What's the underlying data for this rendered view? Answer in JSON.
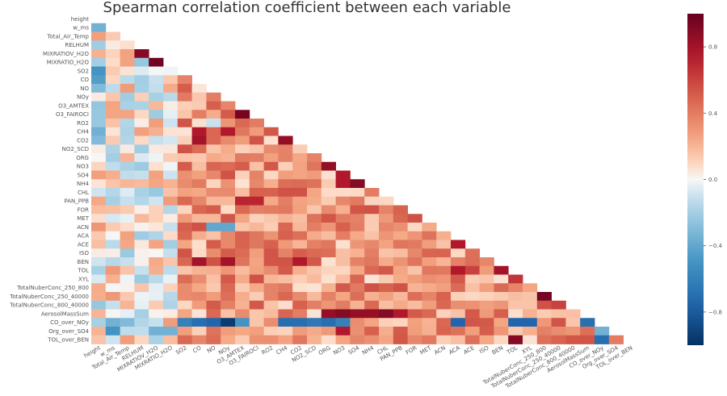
{
  "chart_data": {
    "type": "heatmap",
    "title": "Spearman correlation coefficient between each variable",
    "mask": "lower-triangle",
    "colormap": "RdBu_r",
    "vmin": -1.0,
    "vmax": 1.0,
    "colorbar_ticks": [
      "0.8",
      "0.4",
      "0.0",
      "−0.4",
      "−0.8"
    ],
    "colorbar_tick_values": [
      0.8,
      0.4,
      0.0,
      -0.4,
      -0.8
    ],
    "labels": [
      "height",
      "w_ms",
      "Total_Air_Temp",
      "RELHUM",
      "MIXRATIOV_H2O",
      "MIXRATIO_H2O",
      "SO2",
      "CO",
      "NO",
      "NOy",
      "O3_AMTEX",
      "O3_FAIROCI",
      "RO2",
      "CH4",
      "CO2",
      "NO2_SCD",
      "ORG",
      "NO3",
      "SO4",
      "NH4",
      "CHL",
      "PAN_PPB",
      "FOR",
      "MET",
      "ACN",
      "ACA",
      "ACE",
      "ISO",
      "BEN",
      "TOL",
      "XYL",
      "TotalNuberConc_250_800",
      "TotalNuberConc_250_40000",
      "TotalNuberConc_800_40000",
      "AerosolMassSum",
      "CO_over_NOy",
      "Org_over_SO4",
      "TOL_over_BEN"
    ],
    "seed": 20240607,
    "strong_cells": [
      [
        4,
        3,
        0.9
      ],
      [
        5,
        4,
        0.97
      ],
      [
        11,
        10,
        0.95
      ],
      [
        13,
        7,
        0.75
      ],
      [
        13,
        9,
        0.75
      ],
      [
        14,
        7,
        0.8
      ],
      [
        14,
        13,
        0.85
      ],
      [
        17,
        16,
        0.85
      ],
      [
        18,
        17,
        0.75
      ],
      [
        19,
        17,
        0.75
      ],
      [
        19,
        18,
        0.9
      ],
      [
        21,
        10,
        0.7
      ],
      [
        21,
        11,
        0.7
      ],
      [
        26,
        25,
        0.75
      ],
      [
        28,
        7,
        0.8
      ],
      [
        28,
        9,
        0.8
      ],
      [
        28,
        14,
        0.75
      ],
      [
        29,
        28,
        0.8
      ],
      [
        30,
        29,
        0.65
      ],
      [
        32,
        31,
        0.95
      ],
      [
        34,
        16,
        0.85
      ],
      [
        34,
        17,
        0.9
      ],
      [
        34,
        18,
        0.85
      ],
      [
        34,
        19,
        0.85
      ],
      [
        34,
        20,
        0.9
      ],
      [
        34,
        21,
        0.75
      ],
      [
        35,
        6,
        -0.6
      ],
      [
        35,
        7,
        -0.7
      ],
      [
        35,
        8,
        -0.75
      ],
      [
        35,
        9,
        -0.95
      ],
      [
        35,
        10,
        -0.5
      ],
      [
        35,
        13,
        -0.7
      ],
      [
        35,
        14,
        -0.7
      ],
      [
        35,
        15,
        -0.65
      ],
      [
        35,
        16,
        -0.7
      ],
      [
        35,
        17,
        -0.6
      ],
      [
        35,
        25,
        -0.75
      ],
      [
        35,
        29,
        -0.75
      ],
      [
        35,
        30,
        -0.75
      ],
      [
        35,
        34,
        -0.7
      ],
      [
        36,
        35,
        -0.35
      ],
      [
        37,
        29,
        0.9
      ],
      [
        37,
        35,
        -0.7
      ],
      [
        36,
        17,
        0.75
      ],
      [
        36,
        1,
        -0.5
      ],
      [
        36,
        4,
        -0.35
      ],
      [
        36,
        5,
        -0.35
      ],
      [
        35,
        1,
        -0.35
      ],
      [
        35,
        2,
        -0.3
      ],
      [
        1,
        0,
        -0.35
      ],
      [
        7,
        0,
        -0.45
      ],
      [
        6,
        0,
        -0.5
      ],
      [
        8,
        0,
        -0.3
      ],
      [
        13,
        0,
        -0.35
      ],
      [
        14,
        0,
        -0.3
      ],
      [
        12,
        8,
        -0.1
      ],
      [
        24,
        24,
        0.0
      ],
      [
        24,
        8,
        -0.4
      ],
      [
        24,
        9,
        -0.4
      ],
      [
        24,
        0,
        0.3
      ],
      [
        34,
        0,
        0.2
      ],
      [
        20,
        14,
        0.55
      ],
      [
        29,
        25,
        0.75
      ],
      [
        29,
        26,
        0.6
      ],
      [
        33,
        32,
        0.6
      ],
      [
        33,
        31,
        0.55
      ],
      [
        22,
        19,
        0.55
      ],
      [
        23,
        22,
        0.55
      ]
    ]
  }
}
